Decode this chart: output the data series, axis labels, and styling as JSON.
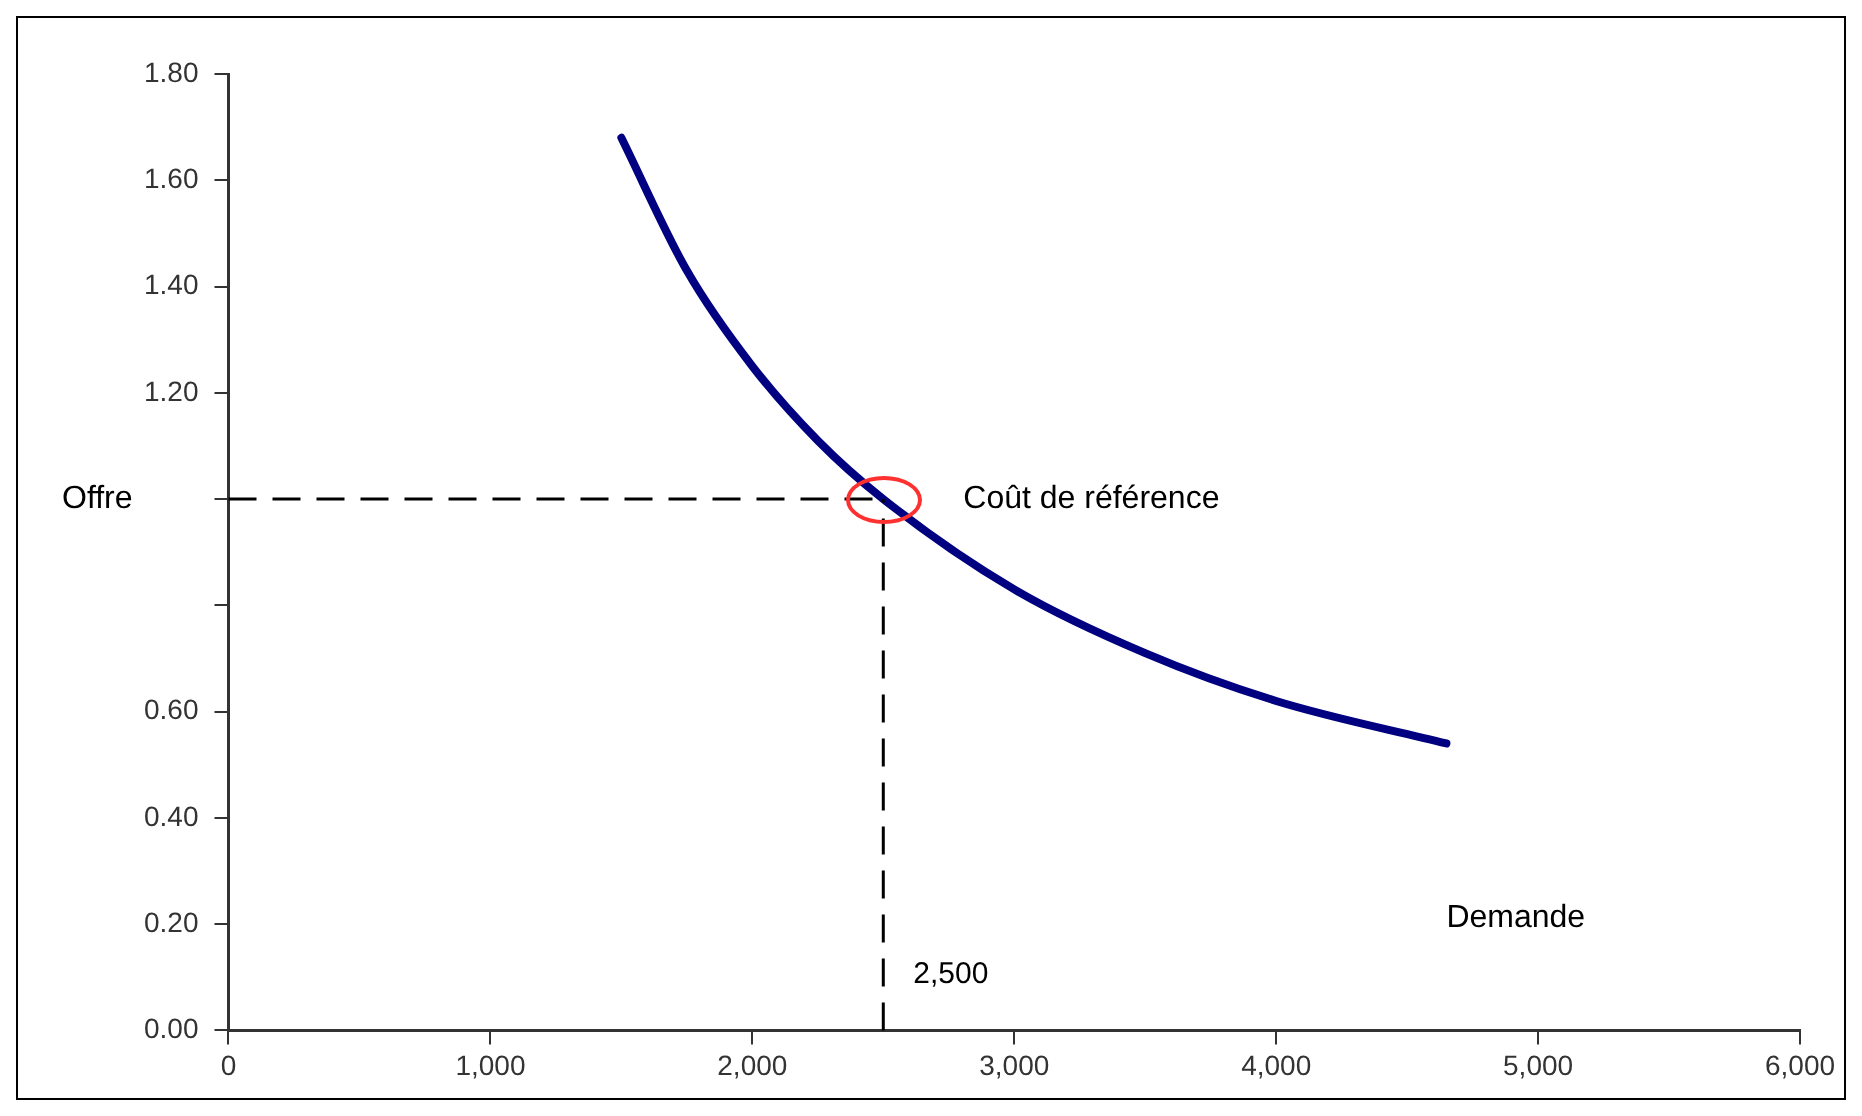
{
  "chart_data": {
    "type": "line",
    "xlabel": "Demande",
    "series": [
      {
        "color": "#000080",
        "x": [
          1500,
          1750,
          2000,
          2250,
          2500,
          3000,
          3500,
          4000,
          4650
        ],
        "values": [
          1.68,
          1.43,
          1.25,
          1.11,
          1.0,
          0.83,
          0.71,
          0.62,
          0.54
        ]
      }
    ],
    "xlim": [
      0,
      6000
    ],
    "xticks": [
      {
        "value": 0,
        "label": "0"
      },
      {
        "value": 1000,
        "label": "1,000"
      },
      {
        "value": 2000,
        "label": "2,000"
      },
      {
        "value": 3000,
        "label": "3,000"
      },
      {
        "value": 4000,
        "label": "4,000"
      },
      {
        "value": 5000,
        "label": "5,000"
      },
      {
        "value": 6000,
        "label": "6,000"
      }
    ],
    "ylim": [
      0,
      1.8
    ],
    "yticks": [
      {
        "value": 0,
        "label": "0.00"
      },
      {
        "value": 0.2,
        "label": "0.20"
      },
      {
        "value": 0.4,
        "label": "0.40"
      },
      {
        "value": 0.6,
        "label": "0.60"
      },
      {
        "value": 0.8,
        "label": null
      },
      {
        "value": 1.0,
        "label": null
      },
      {
        "value": 1.2,
        "label": "1.20"
      },
      {
        "value": 1.4,
        "label": "1.40"
      },
      {
        "value": 1.6,
        "label": "1.60"
      },
      {
        "value": 1.8,
        "label": "1.80"
      }
    ],
    "ref_lines": [
      {
        "axis": "y",
        "value": 1.0,
        "label": "Offre",
        "line_style": "dashed"
      },
      {
        "axis": "x",
        "value": 2500,
        "label": "2,500",
        "line_style": "dashed"
      }
    ],
    "annotations": [
      {
        "text": "Coût de référence",
        "x": 2500,
        "y": 1.0
      }
    ],
    "grid": false,
    "legend": false,
    "marker": "none",
    "line_style": "solid"
  }
}
